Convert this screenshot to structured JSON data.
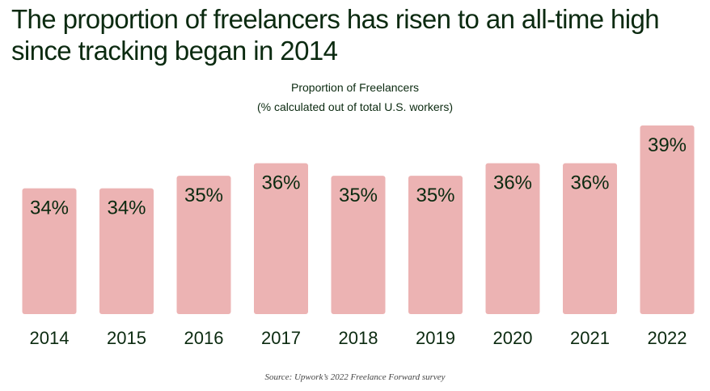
{
  "headline": "The proportion of freelancers has risen to an all-time high since tracking began in 2014",
  "colors": {
    "bar": "#ecb3b3",
    "text": "#0b2a10"
  },
  "chart_data": {
    "type": "bar",
    "title": "Proportion of Freelancers",
    "subtitle": "(% calculated out of total U.S. workers)",
    "categories": [
      "2014",
      "2015",
      "2016",
      "2017",
      "2018",
      "2019",
      "2020",
      "2021",
      "2022"
    ],
    "values": [
      34,
      34,
      35,
      36,
      35,
      35,
      36,
      36,
      39
    ],
    "value_labels": [
      "34%",
      "34%",
      "35%",
      "36%",
      "35%",
      "35%",
      "36%",
      "36%",
      "39%"
    ],
    "xlabel": "",
    "ylabel": "",
    "ylim": [
      24,
      39
    ],
    "grid": false,
    "legend": "none"
  },
  "source": "Source: Upwork’s 2022 Freelance Forward survey"
}
